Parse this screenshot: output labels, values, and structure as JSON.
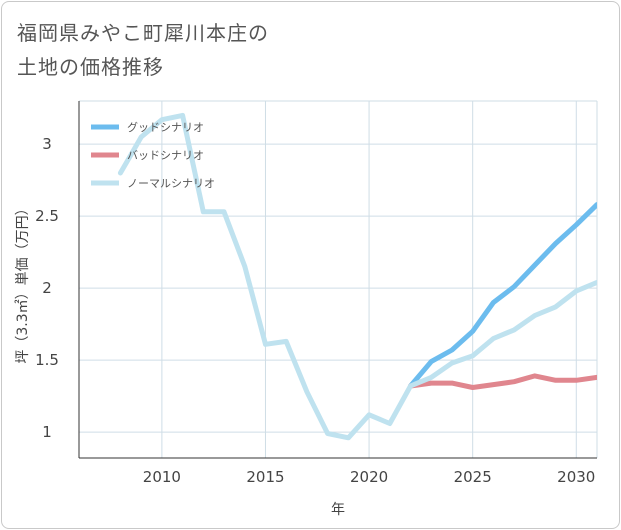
{
  "title": {
    "line1": "福岡県みやこ町犀川本庄の",
    "line2": "土地の価格推移"
  },
  "colors": {
    "good": "#6cbcee",
    "bad": "#e0868e",
    "normal": "#bfe2ef",
    "grid": "#cfdde6",
    "axis": "#333333"
  },
  "chart_data": {
    "type": "line",
    "title": "福岡県みやこ町犀川本庄の土地の価格推移",
    "xlabel": "年",
    "ylabel": "坪（3.3㎡）単価（万円）",
    "xlim": [
      2006,
      2031
    ],
    "ylim": [
      0.82,
      3.3
    ],
    "xticks": [
      2010,
      2015,
      2020,
      2025,
      2030
    ],
    "yticks": [
      1,
      1.5,
      2,
      2.5,
      3
    ],
    "xtick_labels": [
      "2010",
      "2015",
      "2020",
      "2025",
      "2030"
    ],
    "ytick_labels": [
      "1",
      "1.5",
      "2",
      "2.5",
      "3"
    ],
    "legend_position": "top-left",
    "series": [
      {
        "name": "グッドシナリオ",
        "key": "good",
        "x": [
          2022,
          2023,
          2024,
          2025,
          2026,
          2027,
          2028,
          2029,
          2030,
          2031
        ],
        "y": [
          1.32,
          1.49,
          1.57,
          1.7,
          1.9,
          2.01,
          2.16,
          2.31,
          2.44,
          2.58
        ]
      },
      {
        "name": "バッドシナリオ",
        "key": "bad",
        "x": [
          2022,
          2023,
          2024,
          2025,
          2026,
          2027,
          2028,
          2029,
          2030,
          2031
        ],
        "y": [
          1.32,
          1.34,
          1.34,
          1.31,
          1.33,
          1.35,
          1.39,
          1.36,
          1.36,
          1.38
        ]
      },
      {
        "name": "ノーマルシナリオ",
        "key": "normal",
        "x": [
          2008,
          2009,
          2010,
          2011,
          2012,
          2013,
          2014,
          2015,
          2016,
          2017,
          2018,
          2019,
          2020,
          2021,
          2022,
          2023,
          2024,
          2025,
          2026,
          2027,
          2028,
          2029,
          2030,
          2031
        ],
        "y": [
          2.8,
          3.05,
          3.17,
          3.2,
          2.53,
          2.53,
          2.15,
          1.61,
          1.63,
          1.28,
          0.99,
          0.96,
          1.12,
          1.06,
          1.32,
          1.38,
          1.48,
          1.53,
          1.65,
          1.71,
          1.81,
          1.87,
          1.98,
          2.04
        ]
      }
    ]
  }
}
